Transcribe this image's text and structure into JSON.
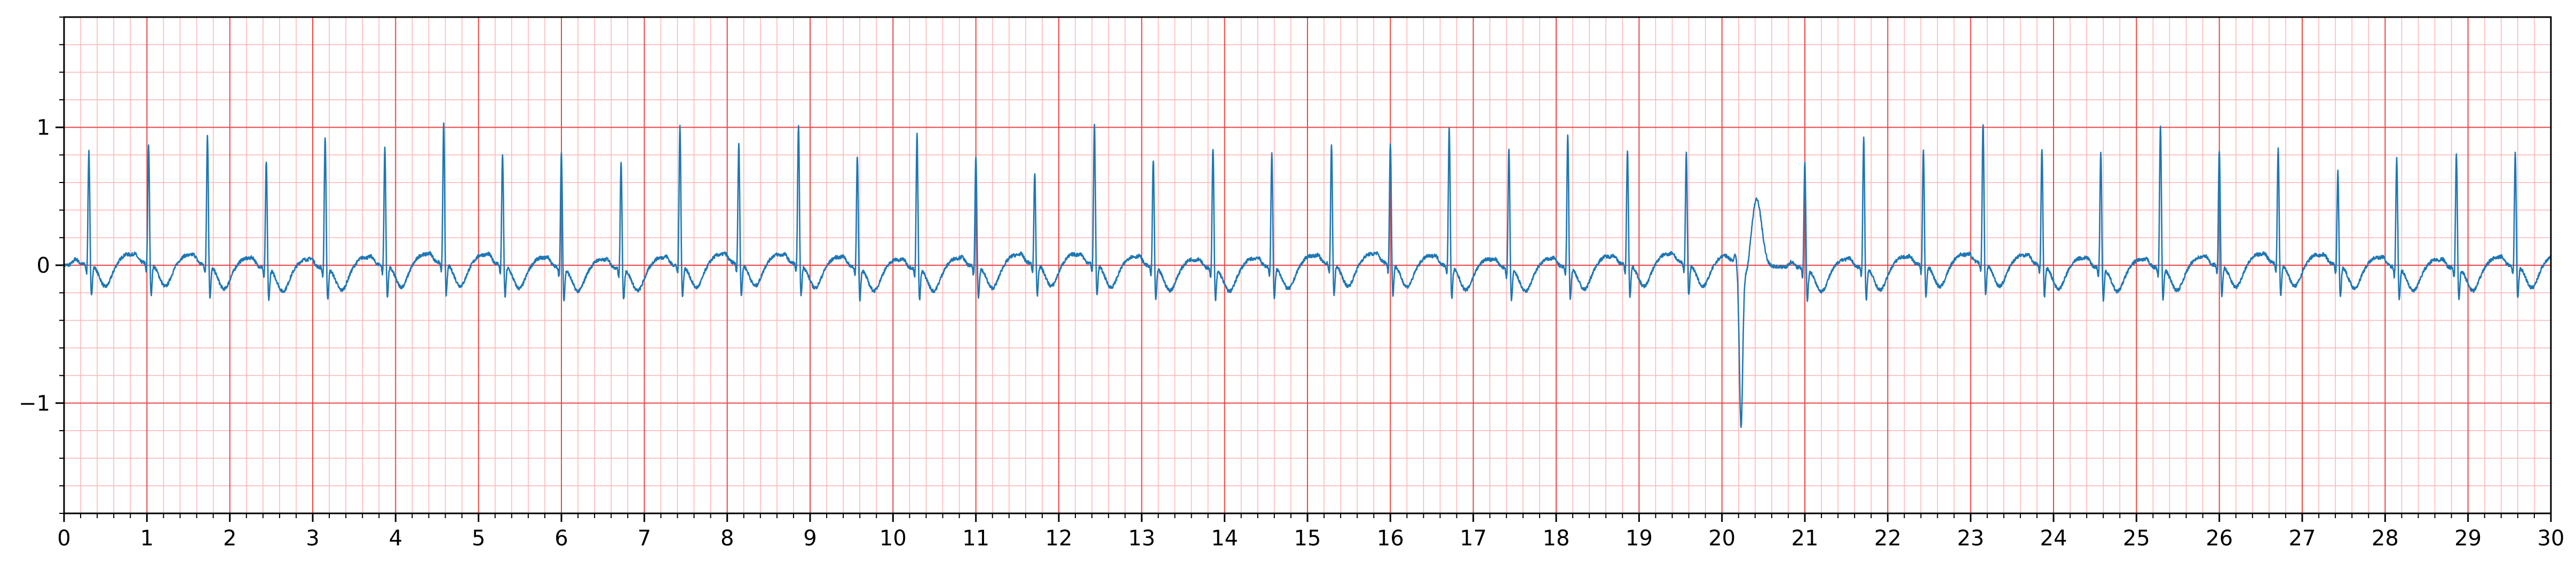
{
  "chart_data": {
    "type": "line",
    "title": "",
    "xlabel": "",
    "ylabel": "",
    "xlim": [
      0,
      30
    ],
    "ylim": [
      -1.8,
      1.8
    ],
    "grid": true,
    "grid_style": "ecg-paper",
    "colors": {
      "trace": "#1f77b4",
      "major_grid": "#ee4444",
      "minor_grid": "#ffb3b3",
      "axis": "#000000"
    },
    "x_ticks": [
      0,
      1,
      2,
      3,
      4,
      5,
      6,
      7,
      8,
      9,
      10,
      11,
      12,
      13,
      14,
      15,
      16,
      17,
      18,
      19,
      20,
      21,
      22,
      23,
      24,
      25,
      26,
      27,
      28,
      29,
      30
    ],
    "x_tick_labels": [
      "0",
      "1",
      "2",
      "3",
      "4",
      "5",
      "6",
      "7",
      "8",
      "9",
      "10",
      "11",
      "12",
      "13",
      "14",
      "15",
      "16",
      "17",
      "18",
      "19",
      "20",
      "21",
      "22",
      "23",
      "24",
      "25",
      "26",
      "27",
      "28",
      "29",
      "30"
    ],
    "y_ticks": [
      -1,
      0,
      1
    ],
    "y_tick_labels": [
      "−1",
      "0",
      "1"
    ],
    "beats": [
      {
        "t": 0.3,
        "r": 0.85
      },
      {
        "t": 1.02,
        "r": 0.88
      },
      {
        "t": 1.73,
        "r": 0.97
      },
      {
        "t": 2.44,
        "r": 0.8
      },
      {
        "t": 3.15,
        "r": 0.98
      },
      {
        "t": 3.87,
        "r": 0.87
      },
      {
        "t": 4.58,
        "r": 1.03
      },
      {
        "t": 5.29,
        "r": 0.83
      },
      {
        "t": 6.0,
        "r": 0.86
      },
      {
        "t": 6.72,
        "r": 0.79
      },
      {
        "t": 7.43,
        "r": 1.03
      },
      {
        "t": 8.14,
        "r": 0.89
      },
      {
        "t": 8.86,
        "r": 1.03
      },
      {
        "t": 9.57,
        "r": 0.83
      },
      {
        "t": 10.29,
        "r": 1.0
      },
      {
        "t": 11.0,
        "r": 0.82
      },
      {
        "t": 11.71,
        "r": 0.68
      },
      {
        "t": 12.43,
        "r": 1.04
      },
      {
        "t": 13.14,
        "r": 0.8
      },
      {
        "t": 13.86,
        "r": 0.9
      },
      {
        "t": 14.57,
        "r": 0.85
      },
      {
        "t": 15.29,
        "r": 0.88
      },
      {
        "t": 16.0,
        "r": 0.9
      },
      {
        "t": 16.71,
        "r": 1.03
      },
      {
        "t": 17.43,
        "r": 0.89
      },
      {
        "t": 18.14,
        "r": 0.99
      },
      {
        "t": 18.86,
        "r": 0.85
      },
      {
        "t": 19.57,
        "r": 0.82
      },
      {
        "t": 21.0,
        "r": 0.8
      },
      {
        "t": 21.71,
        "r": 0.97
      },
      {
        "t": 22.43,
        "r": 0.86
      },
      {
        "t": 23.15,
        "r": 1.04
      },
      {
        "t": 23.86,
        "r": 0.87
      },
      {
        "t": 24.57,
        "r": 0.86
      },
      {
        "t": 25.29,
        "r": 1.06
      },
      {
        "t": 26.0,
        "r": 0.86
      },
      {
        "t": 26.71,
        "r": 0.86
      },
      {
        "t": 27.43,
        "r": 0.7
      },
      {
        "t": 28.14,
        "r": 0.82
      },
      {
        "t": 28.86,
        "r": 0.86
      },
      {
        "t": 29.57,
        "r": 0.84
      }
    ],
    "ectopic_beat": {
      "t": 20.2,
      "r_min": -1.18,
      "t_wave_peak_time": 20.42,
      "t_wave_peak": 0.48
    }
  }
}
